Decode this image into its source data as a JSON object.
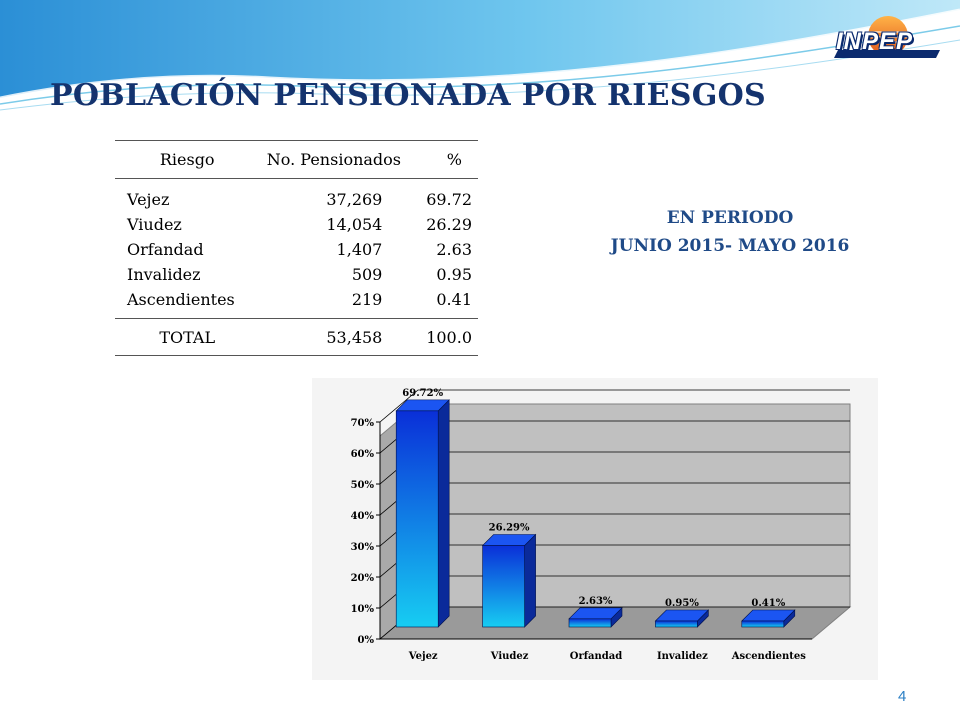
{
  "title": "POBLACIÓN PENSIONADA POR RIESGOS",
  "logo": {
    "text": "INPEP"
  },
  "period": {
    "line1": "EN PERIODO",
    "line2": "JUNIO 2015- MAYO 2016"
  },
  "table": {
    "headers": [
      "Riesgo",
      "No. Pensionados",
      "%"
    ],
    "rows": [
      {
        "riesgo": "Vejez",
        "pensionados": "37,269",
        "pct": "69.72"
      },
      {
        "riesgo": "Viudez",
        "pensionados": "14,054",
        "pct": "26.29"
      },
      {
        "riesgo": "Orfandad",
        "pensionados": "1,407",
        "pct": "2.63"
      },
      {
        "riesgo": "Invalidez",
        "pensionados": "509",
        "pct": "0.95"
      },
      {
        "riesgo": "Ascendientes",
        "pensionados": "219",
        "pct": "0.41"
      }
    ],
    "total": {
      "label": "TOTAL",
      "pensionados": "53,458",
      "pct": "100.0"
    }
  },
  "chart_data": {
    "type": "bar",
    "categories": [
      "Vejez",
      "Viudez",
      "Orfandad",
      "Invalidez",
      "Ascendientes"
    ],
    "values": [
      69.72,
      26.29,
      2.63,
      0.95,
      0.41
    ],
    "data_labels": [
      "69.72%",
      "26.29%",
      "2.63%",
      "0.95%",
      "0.41%"
    ],
    "yticks": [
      "0%",
      "10%",
      "20%",
      "30%",
      "40%",
      "50%",
      "60%",
      "70%"
    ],
    "ylim": [
      0,
      70
    ],
    "grid": true,
    "colors": {
      "bar_top": "#0a2fd8",
      "bar_bottom": "#17cdf2",
      "plot_bg": "#c0c0c0"
    }
  },
  "page_number": "4"
}
